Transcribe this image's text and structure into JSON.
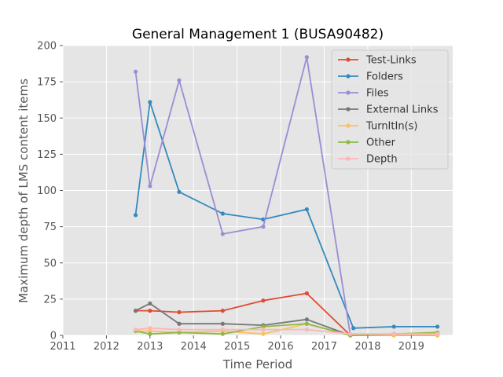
{
  "chart_data": {
    "type": "line",
    "title": "General Management 1 (BUSA90482)",
    "xlabel": "Time Period",
    "ylabel": "Maximum depth of LMS content items",
    "xlim": [
      2011,
      2019.95
    ],
    "ylim": [
      0,
      200
    ],
    "xticks": [
      2011,
      2012,
      2013,
      2014,
      2015,
      2016,
      2017,
      2018,
      2019
    ],
    "yticks": [
      0,
      25,
      50,
      75,
      100,
      125,
      150,
      175,
      200
    ],
    "grid": true,
    "legend": "top-right",
    "series": [
      {
        "name": "Test-Links",
        "color": "#e24a33",
        "x": [
          2012.67,
          2013.0,
          2013.67,
          2014.67,
          2015.6,
          2016.6,
          2017.6,
          2018.6,
          2019.6
        ],
        "y": [
          17,
          17,
          16,
          17,
          24,
          29,
          0,
          1,
          1
        ]
      },
      {
        "name": "Folders",
        "color": "#348abd",
        "x": [
          2012.67,
          2013.0,
          2013.67,
          2014.67,
          2015.6,
          2016.6,
          2017.67,
          2018.6,
          2019.6
        ],
        "y": [
          83,
          161,
          99,
          84,
          80,
          87,
          5,
          6,
          6
        ]
      },
      {
        "name": "Files",
        "color": "#988ed5",
        "x": [
          2012.67,
          2013.0,
          2013.67,
          2014.67,
          2015.6,
          2016.6,
          2017.6,
          2018.6,
          2019.6
        ],
        "y": [
          182,
          103,
          176,
          70,
          75,
          192,
          0,
          0,
          0
        ]
      },
      {
        "name": "External Links",
        "color": "#777777",
        "x": [
          2012.67,
          2013.0,
          2013.67,
          2014.67,
          2015.6,
          2016.6,
          2017.6,
          2018.6,
          2019.6
        ],
        "y": [
          17,
          22,
          8,
          8,
          7,
          11,
          0,
          0,
          0
        ]
      },
      {
        "name": "TurnItIn(s)",
        "color": "#fbc15e",
        "x": [
          2012.67,
          2013.0,
          2013.67,
          2014.67,
          2015.6,
          2016.6,
          2017.6,
          2018.6,
          2019.6
        ],
        "y": [
          3,
          3,
          2,
          3,
          1,
          8,
          0,
          0,
          0
        ]
      },
      {
        "name": "Other",
        "color": "#8eba42",
        "x": [
          2012.67,
          2013.0,
          2013.67,
          2014.67,
          2015.6,
          2016.6,
          2017.6,
          2018.6,
          2019.6
        ],
        "y": [
          3,
          1,
          2,
          1,
          6,
          8,
          0,
          1,
          2
        ]
      },
      {
        "name": "Depth",
        "color": "#ffb5b8",
        "x": [
          2012.67,
          2013.0,
          2013.67,
          2014.67,
          2015.6,
          2016.6,
          2017.6,
          2018.6,
          2019.6
        ],
        "y": [
          4,
          5,
          4,
          4,
          4,
          4,
          1,
          1,
          1
        ]
      }
    ]
  }
}
